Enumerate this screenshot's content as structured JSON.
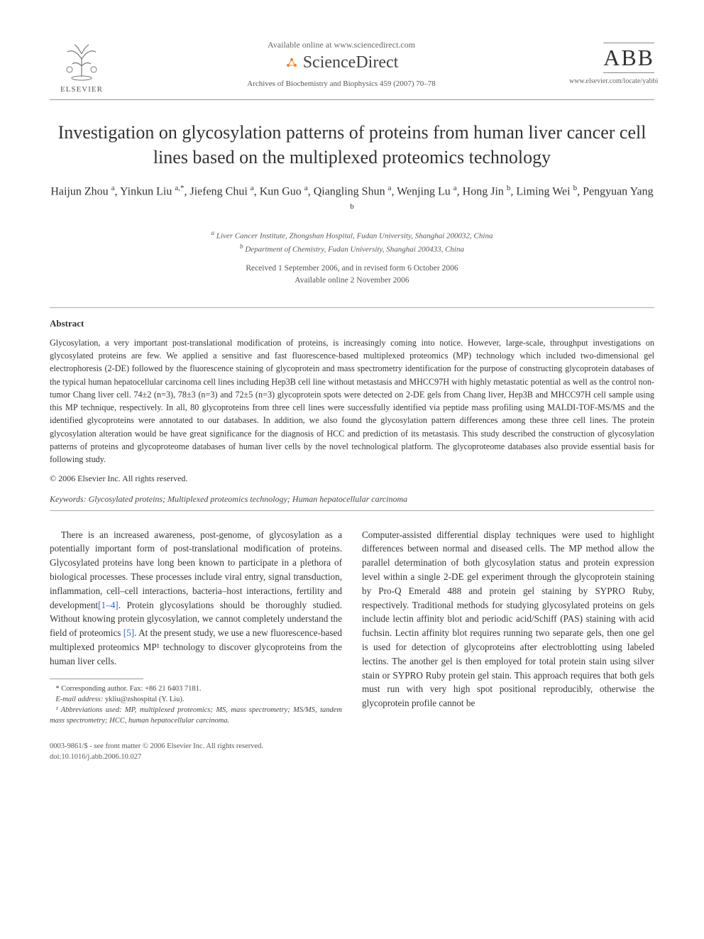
{
  "header": {
    "available_online": "Available online at www.sciencedirect.com",
    "sciencedirect": "ScienceDirect",
    "journal_ref": "Archives of Biochemistry and Biophysics 459 (2007) 70–78",
    "elsevier_label": "ELSEVIER",
    "abb_label": "ABB",
    "locate_url": "www.elsevier.com/locate/yabbi"
  },
  "title": "Investigation on glycosylation patterns of proteins from human liver cancer cell lines based on the multiplexed proteomics technology",
  "authors_html": "Haijun Zhou <sup>a</sup>, Yinkun Liu <sup>a,*</sup>, Jiefeng Chui <sup>a</sup>, Kun Guo <sup>a</sup>, Qiangling Shun <sup>a</sup>, Wenjing Lu <sup>a</sup>, Hong Jin <sup>b</sup>, Liming Wei <sup>b</sup>, Pengyuan Yang <sup>b</sup>",
  "affiliations": {
    "a": "Liver Cancer Institute, Zhongshan Hospital, Fudan University, Shanghai 200032, China",
    "b": "Department of Chemistry, Fudan University, Shanghai 200433, China"
  },
  "dates": {
    "received": "Received 1 September 2006, and in revised form 6 October 2006",
    "online": "Available online 2 November 2006"
  },
  "abstract": {
    "heading": "Abstract",
    "body": "Glycosylation, a very important post-translational modification of proteins, is increasingly coming into notice. However, large-scale, throughput investigations on glycosylated proteins are few. We applied a sensitive and fast fluorescence-based multiplexed proteomics (MP) technology which included two-dimensional gel electrophoresis (2-DE) followed by the fluorescence staining of glycoprotein and mass spectrometry identification for the purpose of constructing glycoprotein databases of the typical human hepatocellular carcinoma cell lines including Hep3B cell line without metastasis and MHCC97H with highly metastatic potential as well as the control non-tumor Chang liver cell. 74±2 (n=3), 78±3 (n=3) and 72±5 (n=3) glycoprotein spots were detected on 2-DE gels from Chang liver, Hep3B and MHCC97H cell sample using this MP technique, respectively. In all, 80 glycoproteins from three cell lines were successfully identified via peptide mass profiling using MALDI-TOF-MS/MS and the identified glycoproteins were annotated to our databases. In addition, we also found the glycosylation pattern differences among these three cell lines. The protein glycosylation alteration would be have great significance for the diagnosis of HCC and prediction of its metastasis. This study described the construction of glycosylation patterns of proteins and glycoproteome databases of human liver cells by the novel technological platform. The glycoproteome databases also provide essential basis for following study.",
    "copyright": "© 2006 Elsevier Inc. All rights reserved."
  },
  "keywords": {
    "label": "Keywords:",
    "text": "Glycosylated proteins; Multiplexed proteomics technology; Human hepatocellular carcinoma"
  },
  "body": {
    "col1": "There is an increased awareness, post-genome, of glycosylation as a potentially important form of post-translational modification of proteins. Glycosylated proteins have long been known to participate in a plethora of biological processes. These processes include viral entry, signal transduction, inflammation, cell–cell interactions, bacteria–host interactions, fertility and development",
    "ref1": "[1–4]",
    "col1b": ". Protein glycosylations should be thoroughly studied. Without knowing protein glycosylation, we cannot completely understand the field of proteomics ",
    "ref2": "[5]",
    "col1c": ". At the present study, we use a new fluorescence-based multiplexed proteomics MP¹ technology to discover glycoproteins from the human liver cells.",
    "col2": "Computer-assisted differential display techniques were used to highlight differences between normal and diseased cells. The MP method allow the parallel determination of both glycosylation status and protein expression level within a single 2-DE gel experiment through the glycoprotein staining by Pro-Q Emerald 488 and protein gel staining by SYPRO Ruby, respectively. Traditional methods for studying glycosylated proteins on gels include lectin affinity blot and periodic acid/Schiff (PAS) staining with acid fuchsin. Lectin affinity blot requires running two separate gels, then one gel is used for detection of glycoproteins after electroblotting using labeled lectins. The another gel is then employed for total protein stain using silver stain or SYPRO Ruby protein gel stain. This approach requires that both gels must run with very high spot positional reproducibly, otherwise the glycoprotein profile cannot be"
  },
  "footnotes": {
    "corresponding": "* Corresponding author. Fax: +86 21 6403 7181.",
    "email_label": "E-mail address:",
    "email": "ykliu@zshospital (Y. Liu).",
    "abbrev": "¹ Abbreviations used: MP, multiplexed proteomics; MS, mass spectrometry; MS/MS, tandem mass spectrometry; HCC, human hepatocellular carcinoma."
  },
  "footer": {
    "issn": "0003-9861/$ - see front matter © 2006 Elsevier Inc. All rights reserved.",
    "doi": "doi:10.1016/j.abb.2006.10.027"
  },
  "colors": {
    "text": "#333333",
    "muted": "#666666",
    "link": "#3366cc",
    "rule": "#999999",
    "sd_orange": "#f58220"
  }
}
